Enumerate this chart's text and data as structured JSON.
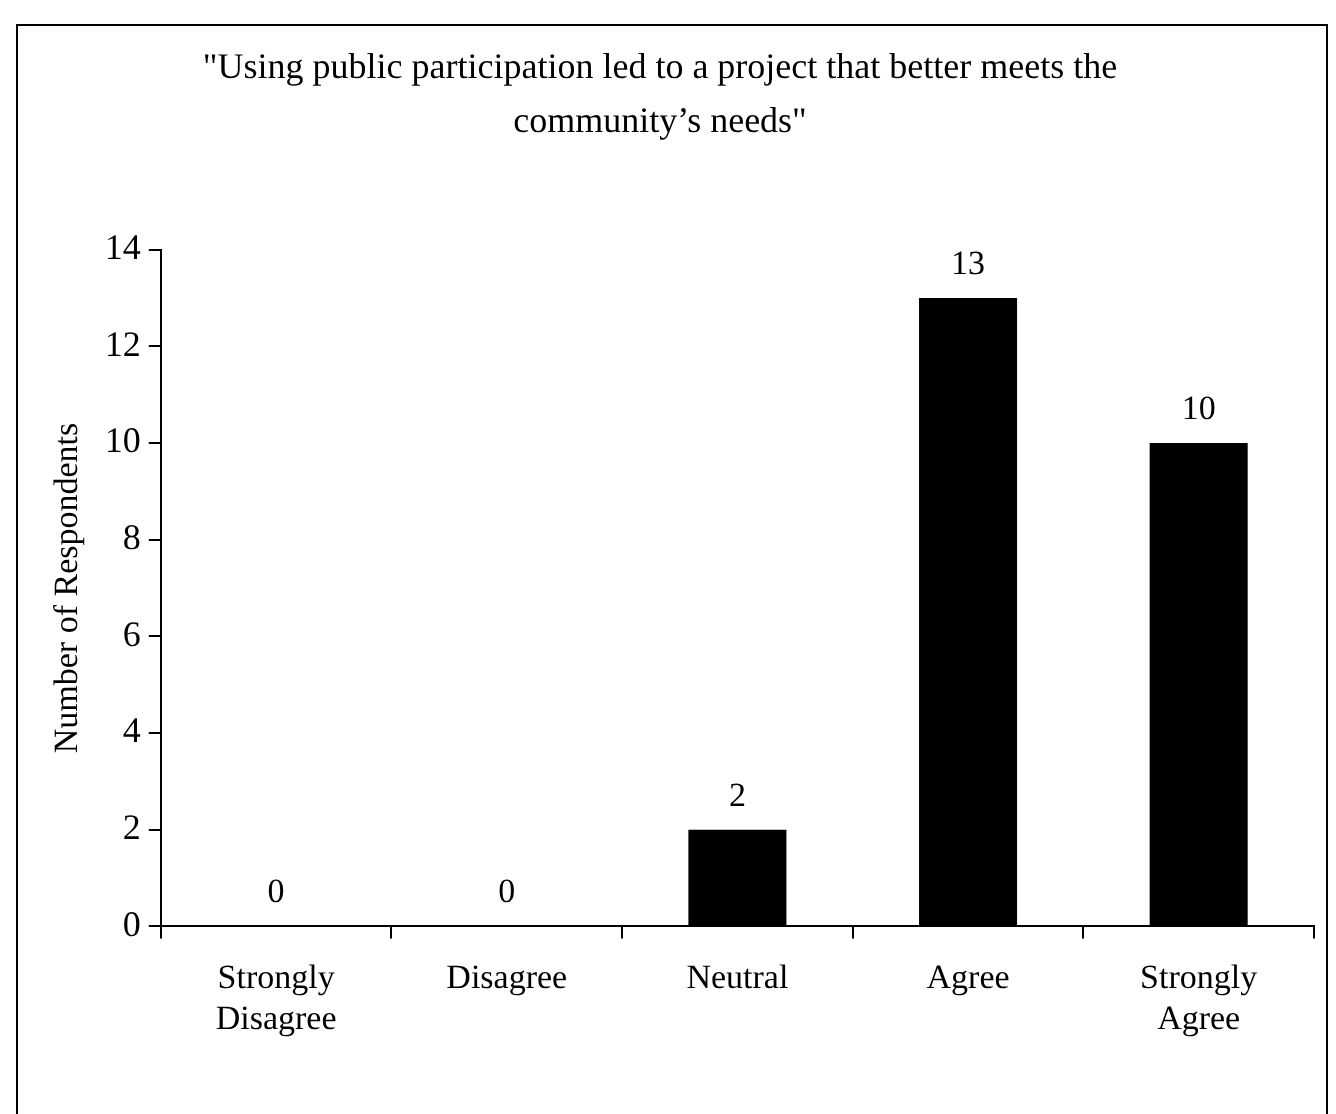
{
  "chart_data": {
    "type": "bar",
    "title": "\"Using public participation led to a project that better meets the community’s needs\"",
    "ylabel": "Number of Respondents",
    "categories": [
      "Strongly Disagree",
      "Disagree",
      "Neutral",
      "Agree",
      "Strongly Agree"
    ],
    "values": [
      0,
      0,
      2,
      13,
      10
    ],
    "color": "#000000",
    "ylim": [
      0,
      14
    ],
    "yticks": [
      0,
      2,
      4,
      6,
      8,
      10,
      12,
      14
    ],
    "grid": false,
    "legend": false,
    "data_labels": true
  }
}
